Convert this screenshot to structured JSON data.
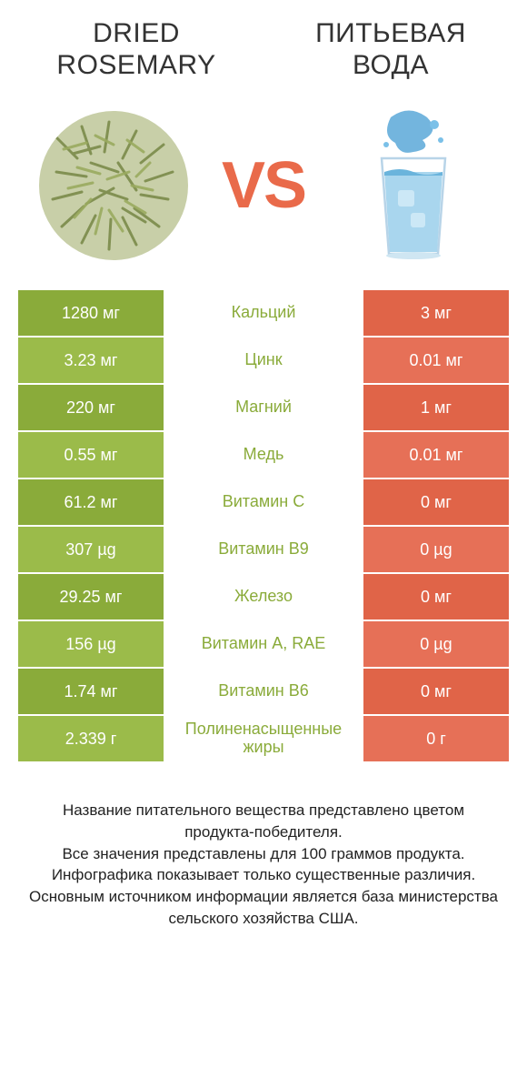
{
  "titles": {
    "left": "DRIED ROSEMARY",
    "right": "ПИТЬЕВАЯ ВОДА",
    "vs": "VS"
  },
  "colors": {
    "left_bg_dark": "#8aab3a",
    "left_bg_light": "#9bbb4a",
    "right_bg_dark": "#e06448",
    "right_bg_light": "#e67057",
    "mid_text_green": "#8aab3a",
    "vs_color": "#e96a4a"
  },
  "rows": [
    {
      "left": "1280 мг",
      "mid": "Кальций",
      "right": "3 мг",
      "winner": "left"
    },
    {
      "left": "3.23 мг",
      "mid": "Цинк",
      "right": "0.01 мг",
      "winner": "left"
    },
    {
      "left": "220 мг",
      "mid": "Магний",
      "right": "1 мг",
      "winner": "left"
    },
    {
      "left": "0.55 мг",
      "mid": "Медь",
      "right": "0.01 мг",
      "winner": "left"
    },
    {
      "left": "61.2 мг",
      "mid": "Витамин C",
      "right": "0 мг",
      "winner": "left"
    },
    {
      "left": "307 µg",
      "mid": "Витамин B9",
      "right": "0 µg",
      "winner": "left"
    },
    {
      "left": "29.25 мг",
      "mid": "Железо",
      "right": "0 мг",
      "winner": "left"
    },
    {
      "left": "156 µg",
      "mid": "Витамин A, RAE",
      "right": "0 µg",
      "winner": "left"
    },
    {
      "left": "1.74 мг",
      "mid": "Витамин B6",
      "right": "0 мг",
      "winner": "left"
    },
    {
      "left": "2.339 г",
      "mid": "Полиненасыщенные жиры",
      "right": "0 г",
      "winner": "left"
    }
  ],
  "footer": "Название питательного вещества представлено цветом продукта-победителя.\nВсе значения представлены для 100 граммов продукта.\nИнфографика показывает только существенные различия.\nОсновным источником информации является база министерства сельского хозяйства США."
}
